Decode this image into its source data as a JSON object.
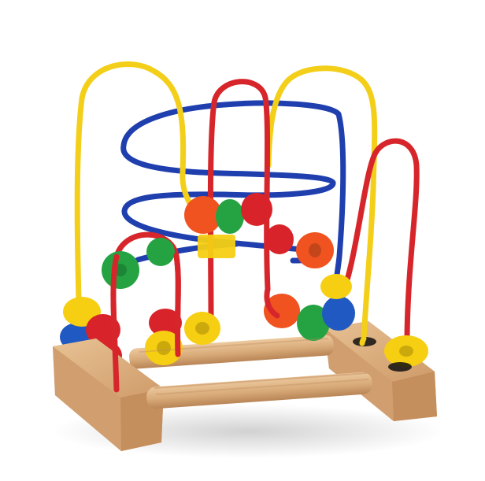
{
  "scene": {
    "subject": "bead-maze-toy",
    "background_color": "#ffffff",
    "wood_color": "#dcae7f",
    "wood_shadow_color": "#c08b5c",
    "wire_colors": {
      "yellow": "#f3cf19",
      "red": "#d7262b",
      "blue": "#1f3fae"
    },
    "bead_colors": {
      "yellow": "#f6cf13",
      "red": "#d9232a",
      "orange": "#f0531f",
      "green": "#25a342",
      "blue": "#1f59c1"
    },
    "bead_count": 22,
    "wire_count": 7
  }
}
